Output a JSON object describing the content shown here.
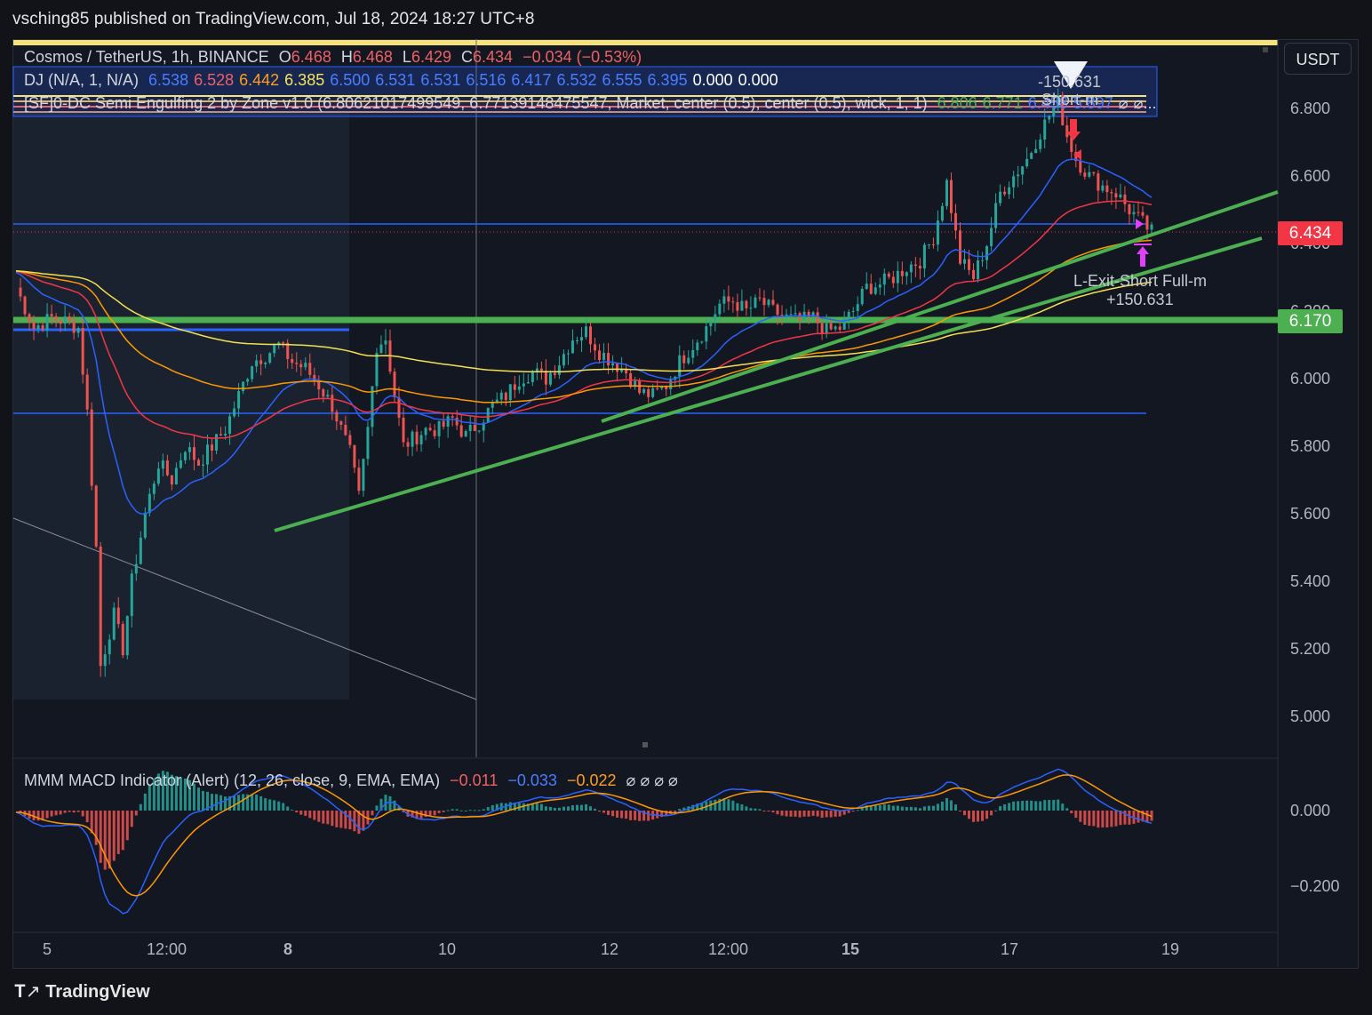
{
  "header": "vsching85 published on TradingView.com, Jul 18, 2024 18:27 UTC+8",
  "currency_button": "USDT",
  "legend": {
    "symbol": "Cosmos / TetherUS, 1h, BINANCE",
    "o_label": "O",
    "o": "6.468",
    "h_label": "H",
    "h": "6.468",
    "l_label": "L",
    "l": "6.429",
    "c_label": "C",
    "c": "6.434",
    "change": "−0.034 (−0.53%)",
    "dj_name": "DJ (N/A, 1, N/A)",
    "dj_values": [
      {
        "v": "6.538",
        "color": "#4a7dff"
      },
      {
        "v": "6.528",
        "color": "#f06064"
      },
      {
        "v": "6.442",
        "color": "#ff9f1a"
      },
      {
        "v": "6.385",
        "color": "#f7e45a"
      },
      {
        "v": "6.500",
        "color": "#4a7dff"
      },
      {
        "v": "6.531",
        "color": "#4a7dff"
      },
      {
        "v": "6.531",
        "color": "#4a7dff"
      },
      {
        "v": "6.516",
        "color": "#4a7dff"
      },
      {
        "v": "6.417",
        "color": "#4a7dff"
      },
      {
        "v": "6.532",
        "color": "#4a7dff"
      },
      {
        "v": "6.555",
        "color": "#4a7dff"
      },
      {
        "v": "6.395",
        "color": "#4a7dff"
      },
      {
        "v": "0.000",
        "color": "#ffffff"
      },
      {
        "v": "0.000",
        "color": "#ffffff"
      }
    ],
    "sf_name": "[SF]0-DC Semi Engulfing 2 by Zone v1.0 (6.80621017499549, 6.77139148475547, Market, center (0.5), center (0.5), wick, 1, 1)",
    "sf_values": [
      {
        "v": "6.806",
        "color": "#4caf50"
      },
      {
        "v": "6.771",
        "color": "#4caf50"
      },
      {
        "v": "6.458",
        "color": "#4a7dff"
      },
      {
        "v": "5.897",
        "color": "#4a7dff"
      },
      {
        "v": "⌀",
        "color": "#d1d4dc"
      },
      {
        "v": "⌀...",
        "color": "#d1d4dc"
      }
    ]
  },
  "price_axis": {
    "labels": [
      "6.800",
      "6.600",
      "6.400",
      "6.200",
      "6.000",
      "5.800",
      "5.600",
      "5.400",
      "5.200",
      "5.000"
    ],
    "last_price": "6.434",
    "level_label": "6.170"
  },
  "time_axis": [
    "5",
    "12:00",
    "8",
    "10",
    "12",
    "12:00",
    "15",
    "17",
    "19"
  ],
  "annotations": {
    "short_pnl": "-150.631",
    "short_label": "Short-m",
    "exit_label": "L-Exit-Short Full-m",
    "exit_pnl": "+150.631"
  },
  "macd_legend": {
    "name": "MMM MACD Indicator (Alert) (12, 26, close, 9, EMA, EMA)",
    "v1": "−0.011",
    "v2": "−0.033",
    "v3": "−0.022",
    "nulls": "⌀ ⌀ ⌀ ⌀"
  },
  "macd_axis": [
    "0.000",
    "−0.200"
  ],
  "logo": "TradingView",
  "colors": {
    "up": "#26a69a",
    "down": "#ef5350",
    "ema_blue": "#2962ff",
    "ema_red": "#f23645",
    "ema_orange": "#ff9800",
    "ema_yellow": "#f5e050",
    "trend_green": "#4caf50"
  },
  "chart_data": {
    "type": "candlestick",
    "symbol": "ATOM/USDT",
    "interval": "1h",
    "price_range": [
      4.95,
      6.95
    ],
    "close_path": [
      [
        0,
        6.27
      ],
      [
        4,
        6.15
      ],
      [
        8,
        6.18
      ],
      [
        11,
        6.17
      ],
      [
        14,
        6.15
      ],
      [
        16,
        5.9
      ],
      [
        18,
        5.5
      ],
      [
        19,
        5.15
      ],
      [
        20,
        5.2
      ],
      [
        22,
        5.3
      ],
      [
        24,
        5.2
      ],
      [
        26,
        5.4
      ],
      [
        29,
        5.6
      ],
      [
        32,
        5.75
      ],
      [
        35,
        5.7
      ],
      [
        38,
        5.8
      ],
      [
        41,
        5.75
      ],
      [
        44,
        5.8
      ],
      [
        47,
        5.85
      ],
      [
        50,
        5.95
      ],
      [
        53,
        6.05
      ],
      [
        56,
        6.07
      ],
      [
        59,
        6.1
      ],
      [
        62,
        6.05
      ],
      [
        65,
        6.03
      ],
      [
        68,
        5.98
      ],
      [
        71,
        5.92
      ],
      [
        73,
        5.85
      ],
      [
        75,
        5.78
      ],
      [
        77,
        5.65
      ],
      [
        79,
        5.85
      ],
      [
        81,
        6.1
      ],
      [
        83,
        6.12
      ],
      [
        85,
        5.95
      ],
      [
        87,
        5.8
      ],
      [
        89,
        5.82
      ],
      [
        92,
        5.85
      ],
      [
        95,
        5.85
      ],
      [
        98,
        5.88
      ],
      [
        101,
        5.83
      ],
      [
        104,
        5.87
      ],
      [
        107,
        5.92
      ],
      [
        110,
        5.95
      ],
      [
        113,
        6.0
      ],
      [
        116,
        6.02
      ],
      [
        119,
        6.0
      ],
      [
        122,
        6.05
      ],
      [
        125,
        6.12
      ],
      [
        128,
        6.14
      ],
      [
        131,
        6.08
      ],
      [
        134,
        6.05
      ],
      [
        137,
        6.02
      ],
      [
        140,
        5.96
      ],
      [
        143,
        5.95
      ],
      [
        146,
        5.98
      ],
      [
        149,
        6.05
      ],
      [
        152,
        6.1
      ],
      [
        155,
        6.15
      ],
      [
        158,
        6.22
      ],
      [
        161,
        6.23
      ],
      [
        164,
        6.2
      ],
      [
        167,
        6.23
      ],
      [
        170,
        6.2
      ],
      [
        173,
        6.18
      ],
      [
        176,
        6.17
      ],
      [
        179,
        6.18
      ],
      [
        182,
        6.14
      ],
      [
        185,
        6.15
      ],
      [
        188,
        6.2
      ],
      [
        191,
        6.27
      ],
      [
        194,
        6.28
      ],
      [
        197,
        6.3
      ],
      [
        200,
        6.33
      ],
      [
        203,
        6.35
      ],
      [
        206,
        6.42
      ],
      [
        209,
        6.58
      ],
      [
        212,
        6.35
      ],
      [
        215,
        6.3
      ],
      [
        218,
        6.4
      ],
      [
        221,
        6.55
      ],
      [
        224,
        6.6
      ],
      [
        227,
        6.65
      ],
      [
        230,
        6.73
      ],
      [
        232,
        6.78
      ],
      [
        234,
        6.82
      ],
      [
        236,
        6.72
      ],
      [
        238,
        6.65
      ],
      [
        241,
        6.6
      ],
      [
        244,
        6.57
      ],
      [
        247,
        6.55
      ],
      [
        250,
        6.5
      ],
      [
        253,
        6.46
      ],
      [
        255,
        6.434
      ]
    ]
  }
}
